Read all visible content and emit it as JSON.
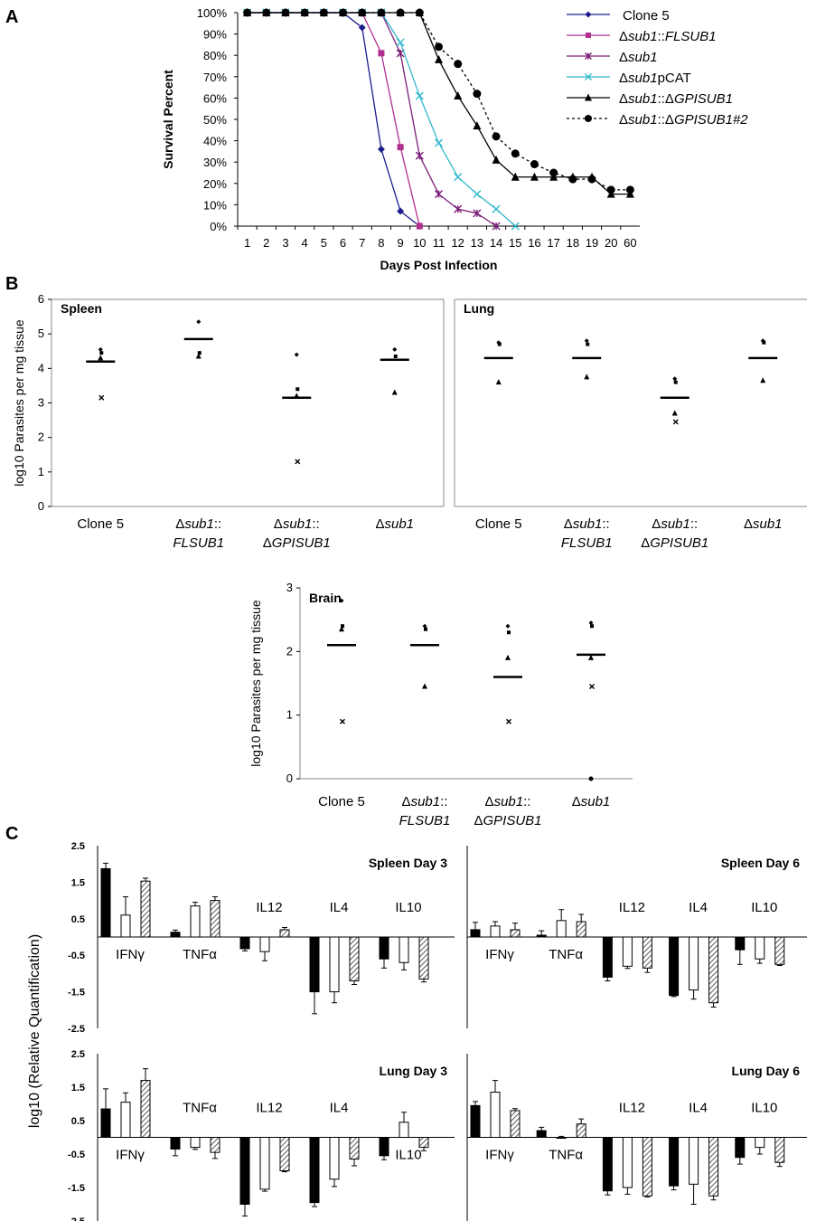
{
  "figure": {
    "panel_labels": [
      "A",
      "B",
      "C"
    ]
  },
  "chart_data": [
    {
      "panel": "A",
      "type": "line",
      "xlabel": "Days Post Infection",
      "ylabel": "Survival Percent",
      "categories": [
        "1",
        "2",
        "3",
        "4",
        "5",
        "6",
        "7",
        "8",
        "9",
        "10",
        "11",
        "12",
        "13",
        "14",
        "15",
        "16",
        "17",
        "18",
        "19",
        "20",
        "60"
      ],
      "yticks": [
        "100%",
        "90%",
        "80%",
        "70%",
        "60%",
        "50%",
        "40%",
        "30%",
        "20%",
        "10%",
        "0%"
      ],
      "ylim": [
        0,
        100
      ],
      "legend_position": "top-right",
      "series": [
        {
          "name": "Clone 5",
          "legend_text": "Clone 5",
          "italic": false,
          "color": "#1c1c8c",
          "marker": "diamond",
          "dashed": false,
          "values": [
            100,
            100,
            100,
            100,
            100,
            100,
            93,
            36,
            7,
            0,
            null,
            null,
            null,
            null,
            null,
            null,
            null,
            null,
            null,
            null,
            null
          ]
        },
        {
          "name": "Δsub1::FLSUB1",
          "legend_text": "Δsub1::FLSUB1",
          "italic": true,
          "color": "#b0308e",
          "marker": "square",
          "dashed": false,
          "values": [
            100,
            100,
            100,
            100,
            100,
            100,
            100,
            81,
            37,
            0,
            null,
            null,
            null,
            null,
            null,
            null,
            null,
            null,
            null,
            null,
            null
          ]
        },
        {
          "name": "Δsub1",
          "legend_text": "Δsub1",
          "italic": true,
          "color": "#7b1e78",
          "marker": "star",
          "dashed": false,
          "values": [
            100,
            100,
            100,
            100,
            100,
            100,
            100,
            100,
            81,
            33,
            15,
            8,
            6,
            0,
            null,
            null,
            null,
            null,
            null,
            null,
            null
          ]
        },
        {
          "name": "Δsub1pCAT",
          "legend_text": "Δsub1pCAT",
          "italic": true,
          "color": "#31b8cc",
          "marker": "x",
          "dashed": false,
          "values": [
            100,
            100,
            100,
            100,
            100,
            100,
            100,
            100,
            86,
            61,
            39,
            23,
            15,
            8,
            0,
            null,
            null,
            null,
            null,
            null,
            null
          ]
        },
        {
          "name": "Δsub1::ΔGPISUB1",
          "legend_text": "Δsub1::ΔGPISUB1",
          "italic": true,
          "color": "#000000",
          "marker": "triangle",
          "dashed": false,
          "values": [
            100,
            100,
            100,
            100,
            100,
            100,
            100,
            100,
            100,
            100,
            78,
            61,
            47,
            31,
            23,
            23,
            23,
            23,
            23,
            15,
            15
          ]
        },
        {
          "name": "Δsub1::ΔGPISUB1#2",
          "legend_text": "Δsub1::ΔGPISUB1#2",
          "italic": true,
          "color": "#000000",
          "marker": "circle",
          "dashed": true,
          "values": [
            100,
            100,
            100,
            100,
            100,
            100,
            100,
            100,
            100,
            100,
            84,
            76,
            62,
            42,
            34,
            29,
            25,
            22,
            22,
            17,
            17
          ]
        }
      ]
    },
    {
      "panel": "B",
      "title": "Spleen",
      "type": "scatter",
      "ylabel": "log10 Parasites per mg tissue",
      "ylim": [
        0,
        6
      ],
      "yticks": [
        "0",
        "1",
        "2",
        "3",
        "4",
        "5",
        "6"
      ],
      "groups": [
        {
          "label_line1": "Clone 5",
          "label_line2": "",
          "italic": false,
          "mean": 4.2,
          "points": [
            4.55,
            4.45,
            4.3,
            3.15
          ]
        },
        {
          "label_line1": "Δsub1::",
          "label_line2": "FLSUB1",
          "italic": true,
          "mean": 4.85,
          "points": [
            5.35,
            4.45,
            4.35
          ]
        },
        {
          "label_line1": "Δsub1::",
          "label_line2": "ΔGPISUB1",
          "italic": true,
          "mean": 3.15,
          "points": [
            4.4,
            3.4,
            3.2,
            1.3
          ]
        },
        {
          "label_line1": "Δsub1",
          "label_line2": "",
          "italic": true,
          "mean": 4.25,
          "points": [
            4.55,
            4.35,
            3.3
          ]
        }
      ]
    },
    {
      "panel": "B",
      "title": "Lung",
      "type": "scatter",
      "ylabel": "",
      "ylim": [
        0,
        6
      ],
      "groups": [
        {
          "label_line1": "Clone 5",
          "label_line2": "",
          "italic": false,
          "mean": 4.3,
          "points": [
            4.75,
            4.7,
            3.6
          ]
        },
        {
          "label_line1": "Δsub1::",
          "label_line2": "FLSUB1",
          "italic": true,
          "mean": 4.3,
          "points": [
            4.8,
            4.7,
            3.75
          ]
        },
        {
          "label_line1": "Δsub1::",
          "label_line2": "ΔGPISUB1",
          "italic": true,
          "mean": 3.15,
          "points": [
            3.7,
            3.6,
            2.7,
            2.45
          ]
        },
        {
          "label_line1": "Δsub1",
          "label_line2": "",
          "italic": true,
          "mean": 4.3,
          "points": [
            4.8,
            4.75,
            3.65
          ]
        }
      ]
    },
    {
      "panel": "B",
      "title": "Brain",
      "type": "scatter",
      "ylabel": "log10 Parasites per mg tissue",
      "ylim": [
        0,
        3
      ],
      "yticks": [
        "0",
        "1",
        "2",
        "3"
      ],
      "groups": [
        {
          "label_line1": "Clone 5",
          "label_line2": "",
          "italic": false,
          "mean": 2.1,
          "points": [
            2.8,
            2.4,
            2.35,
            0.9
          ]
        },
        {
          "label_line1": "Δsub1::",
          "label_line2": "FLSUB1",
          "italic": true,
          "mean": 2.1,
          "points": [
            2.4,
            2.35,
            1.45
          ]
        },
        {
          "label_line1": "Δsub1::",
          "label_line2": "ΔGPISUB1",
          "italic": true,
          "mean": 1.6,
          "points": [
            2.4,
            2.3,
            1.9,
            0.9
          ]
        },
        {
          "label_line1": "Δsub1",
          "label_line2": "",
          "italic": true,
          "mean": 1.95,
          "points": [
            2.45,
            2.4,
            1.9,
            1.45,
            0.0
          ]
        }
      ]
    },
    {
      "panel": "C",
      "type": "bar",
      "shared_ylabel": "log10 (Relative Quantification)",
      "yticks": [
        "2.5",
        "1.5",
        "0.5",
        "-0.5",
        "-1.5",
        "-2.5"
      ],
      "ylim": [
        -2.5,
        2.5
      ],
      "categories": [
        "IFNγ",
        "TNFα",
        "IL12",
        "IL4",
        "IL10"
      ],
      "charts": [
        {
          "title": "Spleen Day 3",
          "show_yaxis": true,
          "values": [
            [
              1.87,
              0.6,
              1.53
            ],
            [
              0.13,
              0.85,
              1.0
            ],
            [
              -0.32,
              -0.4,
              0.2
            ],
            [
              -1.5,
              -1.5,
              -1.2
            ],
            [
              -0.6,
              -0.7,
              -1.15
            ]
          ],
          "errors": [
            [
              0.15,
              0.5,
              0.08
            ],
            [
              0.06,
              0.1,
              0.1
            ],
            [
              0.06,
              0.25,
              0.06
            ],
            [
              0.6,
              0.3,
              0.1
            ],
            [
              0.25,
              0.2,
              0.08
            ]
          ]
        },
        {
          "title": "Spleen Day 6",
          "show_yaxis": false,
          "values": [
            [
              0.2,
              0.3,
              0.2
            ],
            [
              0.05,
              0.45,
              0.42
            ],
            [
              -1.1,
              -0.8,
              -0.85
            ],
            [
              -1.6,
              -1.45,
              -1.8
            ],
            [
              -0.35,
              -0.6,
              -0.75
            ]
          ],
          "errors": [
            [
              0.2,
              0.12,
              0.18
            ],
            [
              0.12,
              0.3,
              0.2
            ],
            [
              0.1,
              0.06,
              0.12
            ],
            [
              0.03,
              0.25,
              0.12
            ],
            [
              0.4,
              0.12,
              0.03
            ]
          ]
        },
        {
          "title": "Lung Day 3",
          "show_yaxis": true,
          "values": [
            [
              0.85,
              1.05,
              1.7
            ],
            [
              -0.35,
              -0.3,
              -0.45
            ],
            [
              -2.0,
              -1.55,
              -1.0
            ],
            [
              -1.95,
              -1.25,
              -0.65
            ],
            [
              -0.55,
              0.45,
              -0.3
            ]
          ],
          "errors": [
            [
              0.6,
              0.28,
              0.35
            ],
            [
              0.2,
              0.06,
              0.18
            ],
            [
              0.35,
              0.06,
              0.03
            ],
            [
              0.12,
              0.22,
              0.2
            ],
            [
              0.12,
              0.3,
              0.1
            ]
          ]
        },
        {
          "title": "Lung Day 6",
          "show_yaxis": false,
          "values": [
            [
              0.95,
              1.35,
              0.8
            ],
            [
              0.2,
              0.0,
              0.4
            ],
            [
              -1.6,
              -1.5,
              -1.75
            ],
            [
              -1.45,
              -1.4,
              -1.75
            ],
            [
              -0.6,
              -0.3,
              -0.75
            ]
          ],
          "errors": [
            [
              0.12,
              0.35,
              0.06
            ],
            [
              0.1,
              0.03,
              0.15
            ],
            [
              0.12,
              0.2,
              0.03
            ],
            [
              0.12,
              0.6,
              0.12
            ],
            [
              0.2,
              0.2,
              0.12
            ]
          ]
        }
      ],
      "category_label_positions": [
        [
          "below",
          "below",
          "above",
          "above",
          "above"
        ],
        [
          "below",
          "below",
          "above",
          "above",
          "above"
        ],
        [
          "below",
          "above",
          "above",
          "above",
          "below"
        ],
        [
          "below",
          "below",
          "above",
          "above",
          "above"
        ]
      ]
    }
  ]
}
